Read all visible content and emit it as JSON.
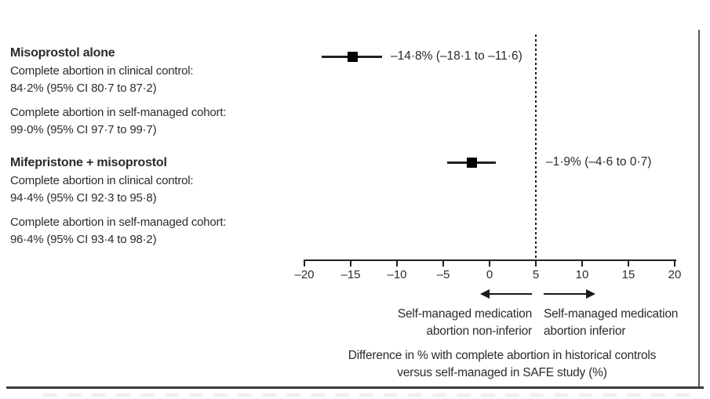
{
  "figure": {
    "groups": [
      {
        "heading": "Misoprostol alone",
        "lines": [
          "Complete abortion in clinical control:",
          "84·2% (95% CI 80·7 to 87·2)",
          "Complete abortion in self-managed cohort:",
          "99·0% (95% CI 97·7 to 99·7)"
        ]
      },
      {
        "heading": "Mifepristone + misoprostol",
        "lines": [
          "Complete abortion in clinical control:",
          "94·4% (95% CI 92·3 to 95·8)",
          "Complete abortion in self-managed cohort:",
          "96·4% (95% CI 93·4 to 98·2)"
        ]
      }
    ]
  },
  "chart_data": {
    "type": "forest",
    "xlim": [
      -20,
      20
    ],
    "xticks": [
      -20,
      -15,
      -10,
      -5,
      0,
      5,
      10,
      15,
      20
    ],
    "xtick_labels": [
      "–20",
      "–15",
      "–10",
      "–5",
      "0",
      "5",
      "10",
      "15",
      "20"
    ],
    "reference_line_x": 5,
    "reference_line_style": "dotted",
    "grid": false,
    "series": [
      {
        "name": "Misoprostol alone",
        "estimate": -14.8,
        "ci_low": -18.1,
        "ci_high": -11.6,
        "label": "–14·8% (–18·1 to –11·6)"
      },
      {
        "name": "Mifepristone + misoprostol",
        "estimate": -1.9,
        "ci_low": -4.6,
        "ci_high": 0.7,
        "label": "–1·9% (–4·6 to 0·7)"
      }
    ],
    "direction_labels": {
      "left_line1": "Self-managed medication",
      "left_line2": "abortion non-inferior",
      "right_line1": "Self-managed medication",
      "right_line2": "abortion inferior"
    },
    "xlabel_line1": "Difference in % with complete abortion in historical controls",
    "xlabel_line2": "versus self-managed in SAFE study (%)"
  },
  "colors": {
    "text": "#2e2a2b",
    "line": "#231f20",
    "marker": "#000000",
    "frame": "#58595b"
  }
}
